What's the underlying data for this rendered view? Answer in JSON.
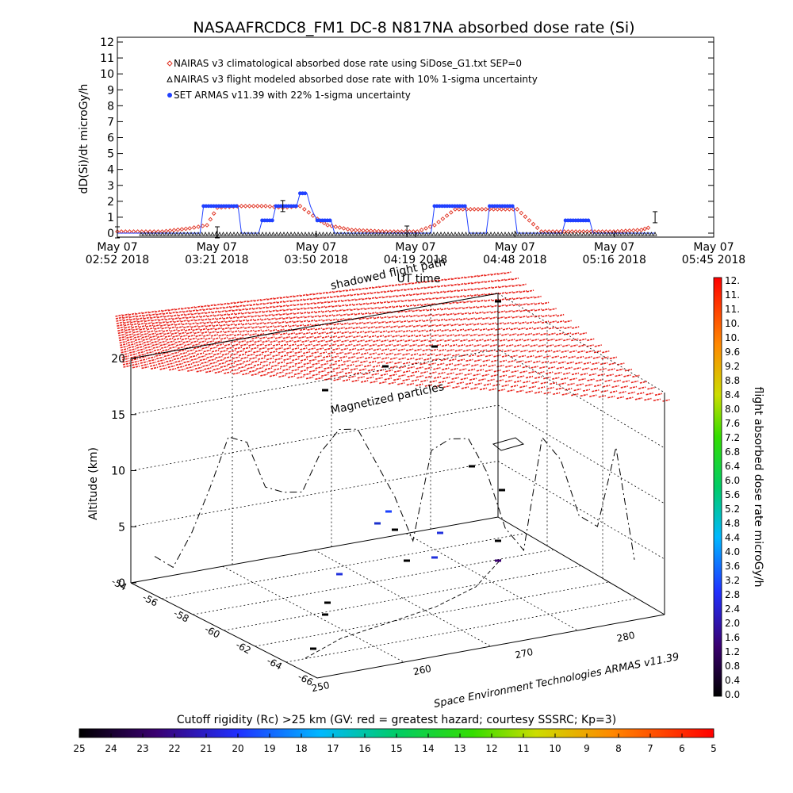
{
  "title": "NASAAFRCDC8_FM1 DC-8    N817NA absorbed dose rate (Si)",
  "top_chart": {
    "ylabel": "dD(Si)/dt microGy/h",
    "xlabel": "UT time",
    "y_ticks": [
      "0",
      "1",
      "2",
      "3",
      "4",
      "5",
      "6",
      "7",
      "8",
      "9",
      "10",
      "11",
      "12"
    ],
    "x_ticks": [
      {
        "date": "May 07",
        "time": "02:52 2018"
      },
      {
        "date": "May 07",
        "time": "03:21 2018"
      },
      {
        "date": "May 07",
        "time": "03:50 2018"
      },
      {
        "date": "May 07",
        "time": "04:19 2018"
      },
      {
        "date": "May 07",
        "time": "04:48 2018"
      },
      {
        "date": "May 07",
        "time": "05:16 2018"
      },
      {
        "date": "May 07",
        "time": "05:45 2018"
      }
    ],
    "legend": [
      {
        "label": "NAIRAS v3 climatological absorbed dose rate using SiDose_G1.txt SEP=0",
        "color": "#e03020",
        "marker": "diamond"
      },
      {
        "label": "NAIRAS v3 flight modeled absorbed dose rate with 10% 1-sigma uncertainty",
        "color": "#000000",
        "marker": "triangle"
      },
      {
        "label": "SET ARMAS v11.39 with 22% 1-sigma uncertainty",
        "color": "#2040ff",
        "marker": "dot"
      }
    ]
  },
  "chart_data": [
    {
      "type": "line",
      "title": "NASAAFRCDC8_FM1 DC-8    N817NA absorbed dose rate (Si)",
      "xlabel": "UT time",
      "ylabel": "dD(Si)/dt microGy/h",
      "xlim": [
        "02:52",
        "05:45"
      ],
      "ylim": [
        0,
        12
      ],
      "series": [
        {
          "name": "NAIRAS v3 climatological absorbed dose rate using SiDose_G1.txt SEP=0",
          "points": [
            [
              "02:52",
              0.1
            ],
            [
              "03:05",
              0.1
            ],
            [
              "03:13",
              0.3
            ],
            [
              "03:18",
              0.5
            ],
            [
              "03:21",
              1.6
            ],
            [
              "03:28",
              1.7
            ],
            [
              "03:35",
              1.7
            ],
            [
              "03:40",
              1.6
            ],
            [
              "03:45",
              1.7
            ],
            [
              "03:50",
              0.9
            ],
            [
              "03:53",
              0.5
            ],
            [
              "04:00",
              0.2
            ],
            [
              "04:10",
              0.1
            ],
            [
              "04:19",
              0.1
            ],
            [
              "04:24",
              0.5
            ],
            [
              "04:30",
              1.5
            ],
            [
              "04:40",
              1.5
            ],
            [
              "04:48",
              1.5
            ],
            [
              "04:55",
              0.1
            ],
            [
              "05:05",
              0.1
            ],
            [
              "05:16",
              0.1
            ],
            [
              "05:24",
              0.2
            ],
            [
              "05:27",
              0.4
            ]
          ]
        },
        {
          "name": "NAIRAS v3 flight modeled absorbed dose rate with 10% 1-sigma uncertainty",
          "points": [
            [
              "02:52",
              0.05
            ],
            [
              "03:21",
              0.05
            ],
            [
              "03:40",
              1.7
            ],
            [
              "04:16",
              0.1
            ],
            [
              "05:28",
              1.0
            ]
          ]
        },
        {
          "name": "SET ARMAS v11.39 with 22% 1-sigma uncertainty",
          "points": [
            [
              "02:52",
              0.0
            ],
            [
              "03:16",
              0.0
            ],
            [
              "03:17",
              1.7
            ],
            [
              "03:27",
              1.7
            ],
            [
              "03:28",
              0.0
            ],
            [
              "03:33",
              0.0
            ],
            [
              "03:34",
              0.8
            ],
            [
              "03:37",
              0.8
            ],
            [
              "03:38",
              1.7
            ],
            [
              "03:44",
              1.7
            ],
            [
              "03:45",
              2.5
            ],
            [
              "03:47",
              2.5
            ],
            [
              "03:48",
              1.7
            ],
            [
              "03:49",
              1.2
            ],
            [
              "03:50",
              0.8
            ],
            [
              "03:54",
              0.8
            ],
            [
              "03:55",
              0.0
            ],
            [
              "04:23",
              0.0
            ],
            [
              "04:24",
              1.7
            ],
            [
              "04:33",
              1.7
            ],
            [
              "04:34",
              0.0
            ],
            [
              "04:39",
              0.0
            ],
            [
              "04:40",
              1.7
            ],
            [
              "04:47",
              1.7
            ],
            [
              "04:48",
              0.0
            ],
            [
              "05:01",
              0.0
            ],
            [
              "05:02",
              0.8
            ],
            [
              "05:09",
              0.8
            ],
            [
              "05:10",
              0.0
            ],
            [
              "05:28",
              0.0
            ]
          ]
        }
      ]
    },
    {
      "type": "scatter",
      "subtype": "3d-flight-track",
      "zlabel": "Altitude (km)",
      "z_ticks": [
        "0",
        "5",
        "10",
        "15",
        "20"
      ],
      "lon_ticks": [
        "250",
        "260",
        "270",
        "280"
      ],
      "lat_ticks": [
        "-54",
        "-56",
        "-58",
        "-60",
        "-62",
        "-64",
        "-66"
      ],
      "annotations": [
        "shadowed flight path",
        "Magnetized particles"
      ],
      "altitude_profile_km": [
        2,
        1,
        4,
        8,
        12.5,
        12,
        8,
        7.5,
        7.5,
        11,
        13,
        13,
        10,
        7,
        3,
        11,
        12,
        12,
        9,
        4,
        2,
        12,
        10,
        5,
        4,
        11,
        1
      ]
    }
  ],
  "colorbar_right": {
    "label": "flight absorbed dose rate microGy/h",
    "ticks": [
      "12.",
      "11.",
      "11.",
      "10.",
      "10.",
      "9.6",
      "9.2",
      "8.8",
      "8.4",
      "8.0",
      "7.6",
      "7.2",
      "6.8",
      "6.4",
      "6.0",
      "5.6",
      "5.2",
      "4.8",
      "4.4",
      "4.0",
      "3.6",
      "3.2",
      "2.8",
      "2.4",
      "2.0",
      "1.6",
      "1.2",
      "0.8",
      "0.4",
      "0.0"
    ]
  },
  "colorbar_bottom": {
    "label": "Cutoff rigidity (Rc) >25 km (GV: red = greatest hazard; courtesy SSSRC; Kp=3)",
    "ticks": [
      "25",
      "24",
      "23",
      "22",
      "21",
      "20",
      "19",
      "18",
      "17",
      "16",
      "15",
      "14",
      "13",
      "12",
      "11",
      "10",
      "9",
      "8",
      "7",
      "6",
      "5"
    ]
  },
  "credit": "Space Environment Technologies ARMAS v11.39",
  "colors": {
    "red": "#e8231c",
    "blue": "#2244ff",
    "black": "#000000"
  }
}
